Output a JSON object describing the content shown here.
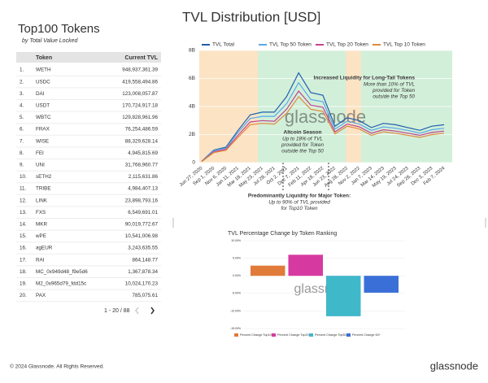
{
  "header": {
    "title": "Top100 Tokens",
    "subtitle": "by Total Value Locked"
  },
  "table": {
    "columns": [
      "Token",
      "Current TVL"
    ],
    "rows": [
      [
        "1.",
        "WETH",
        "948,937,361.39"
      ],
      [
        "2.",
        "USDC",
        "419,558,494.86"
      ],
      [
        "3.",
        "DAI",
        "123,008,057.87"
      ],
      [
        "4.",
        "USDT",
        "170,724,917.18"
      ],
      [
        "5.",
        "WBTC",
        "129,828,961.96"
      ],
      [
        "6.",
        "FRAX",
        "76,254,486.59"
      ],
      [
        "7.",
        "WISE",
        "88,329,628.14"
      ],
      [
        "8.",
        "FEI",
        "4,945,815.69"
      ],
      [
        "9.",
        "UNI",
        "31,768,960.77"
      ],
      [
        "10.",
        "sETH2",
        "2,115,631.86"
      ],
      [
        "11.",
        "TRIBE",
        "4,984,407.13"
      ],
      [
        "12.",
        "LINK",
        "23,898,793.16"
      ],
      [
        "13.",
        "FXS",
        "6,549,691.01"
      ],
      [
        "14.",
        "MKR",
        "90,019,772.67"
      ],
      [
        "15.",
        "wPE",
        "10,541,006.98"
      ],
      [
        "16.",
        "agEUR",
        "3,243,635.55"
      ],
      [
        "17.",
        "RAI",
        "864,148.77"
      ],
      [
        "18.",
        "MC_0x949d48_f9e5d6",
        "1,367,878.34"
      ],
      [
        "19.",
        "M2_0x965d79_fdd15c",
        "10,024,170.23"
      ],
      [
        "20.",
        "PAX",
        "785,075.61"
      ]
    ],
    "pagination": "1 - 20 / 88"
  },
  "chart_data": [
    {
      "type": "line",
      "title": "TVL Distribution [USD]",
      "watermark": "glassnode",
      "x": [
        "Jun 27, 2020",
        "Sep 1, 2020",
        "Nov 6, 2020",
        "Jan 11, 2021",
        "Mar 18, 2021",
        "May 23, 2021",
        "Jul 28, 2021",
        "Oct 2, 2021",
        "Dec 7, 2021",
        "Feb 11, 2022",
        "Apr 18, 2022",
        "Jun 23, 2022",
        "Aug 28, 2022",
        "Nov 2, 2022",
        "Jan 7, 2023",
        "Mar 14, 2023",
        "May 19, 2023",
        "Jul 24, 2023",
        "Sep 28, 2023",
        "Dec 3, 2023",
        "Feb 7, 2024"
      ],
      "series": [
        {
          "name": "TVL Total",
          "color": "#1f5fae",
          "values": [
            100000000.0,
            900000000.0,
            1100000000.0,
            2300000000.0,
            3400000000.0,
            3600000000.0,
            3600000000.0,
            4700000000.0,
            6400000000.0,
            5000000000.0,
            4800000000.0,
            2600000000.0,
            3200000000.0,
            3000000000.0,
            2500000000.0,
            2800000000.0,
            2700000000.0,
            2500000000.0,
            2300000000.0,
            2600000000.0,
            2700000000.0
          ]
        },
        {
          "name": "TVL Top 50 Token",
          "color": "#5aa9e6",
          "values": [
            90000000.0,
            850000000.0,
            1030000000.0,
            2150000000.0,
            3150000000.0,
            3300000000.0,
            3300000000.0,
            4200000000.0,
            5700000000.0,
            4500000000.0,
            4350000000.0,
            2400000000.0,
            2950000000.0,
            2750000000.0,
            2300000000.0,
            2550000000.0,
            2450000000.0,
            2300000000.0,
            2100000000.0,
            2350000000.0,
            2450000000.0
          ]
        },
        {
          "name": "TVL Top 20 Token",
          "color": "#c2448f",
          "values": [
            80000000.0,
            780000000.0,
            950000000.0,
            1950000000.0,
            2900000000.0,
            3000000000.0,
            2950000000.0,
            3800000000.0,
            5100000000.0,
            4100000000.0,
            3950000000.0,
            2200000000.0,
            2750000000.0,
            2550000000.0,
            2100000000.0,
            2350000000.0,
            2250000000.0,
            2100000000.0,
            1950000000.0,
            2150000000.0,
            2250000000.0
          ]
        },
        {
          "name": "TVL Top 10 Token",
          "color": "#e08a3c",
          "values": [
            70000000.0,
            720000000.0,
            880000000.0,
            1800000000.0,
            2700000000.0,
            2800000000.0,
            2750000000.0,
            3500000000.0,
            4700000000.0,
            3800000000.0,
            3650000000.0,
            2050000000.0,
            2600000000.0,
            2400000000.0,
            1950000000.0,
            2200000000.0,
            2100000000.0,
            1950000000.0,
            1800000000.0,
            2000000000.0,
            2100000000.0
          ]
        }
      ],
      "ylim": [
        0,
        8000000000
      ],
      "yticks": [
        0,
        {
          "value": 2000000000,
          "label": "2B"
        },
        {
          "value": 4000000000,
          "label": "4B"
        },
        {
          "value": 6000000000,
          "label": "6B"
        },
        {
          "value": 8000000000,
          "label": "8B"
        }
      ],
      "grid": true,
      "legend": "top",
      "annotations": [
        {
          "title": "Increased Liquidity for Long-Tail Tokens",
          "lines": [
            "More than 10% of TVL",
            "provided for Token",
            "outside the Top 50"
          ]
        },
        {
          "title": "Altcoin Season",
          "lines": [
            "Up to 18% of TVL",
            "provided for Token",
            "outside the Top 50"
          ]
        },
        {
          "title": "Predominantly Liquidity for Major Token:",
          "lines": [
            "Up to 90% of TVL provided",
            "for Top10 Token"
          ]
        }
      ]
    },
    {
      "type": "bar",
      "title": "TVL Percentage Change by Token Ranking",
      "watermark": "glassnode",
      "series": [
        {
          "name": "Percent Change Top10",
          "color": "#e07b39",
          "values": [
            2.9
          ]
        },
        {
          "name": "Percent Change Top20",
          "color": "#d63aa0",
          "values": [
            6.0
          ]
        },
        {
          "name": "Percent Change Top50",
          "color": "#3fb8c9",
          "values": [
            -11.5
          ]
        },
        {
          "name": "Percent Change 50+",
          "color": "#3a6fd8",
          "values": [
            -4.8
          ]
        }
      ],
      "ylim": [
        -15,
        10
      ],
      "yticks": [
        {
          "value": -15,
          "label": "-15.00%"
        },
        {
          "value": -10,
          "label": "-10.00%"
        },
        {
          "value": -5,
          "label": "-5.00%"
        },
        {
          "value": 0,
          "label": "0.00%"
        },
        {
          "value": 5,
          "label": "5.00%"
        },
        {
          "value": 10,
          "label": "10.00%"
        }
      ],
      "grid": true,
      "legend": "bottom"
    }
  ],
  "footer": {
    "copyright": "© 2024 Glassnode. All Rights Reserved.",
    "logo": "glassnode"
  }
}
